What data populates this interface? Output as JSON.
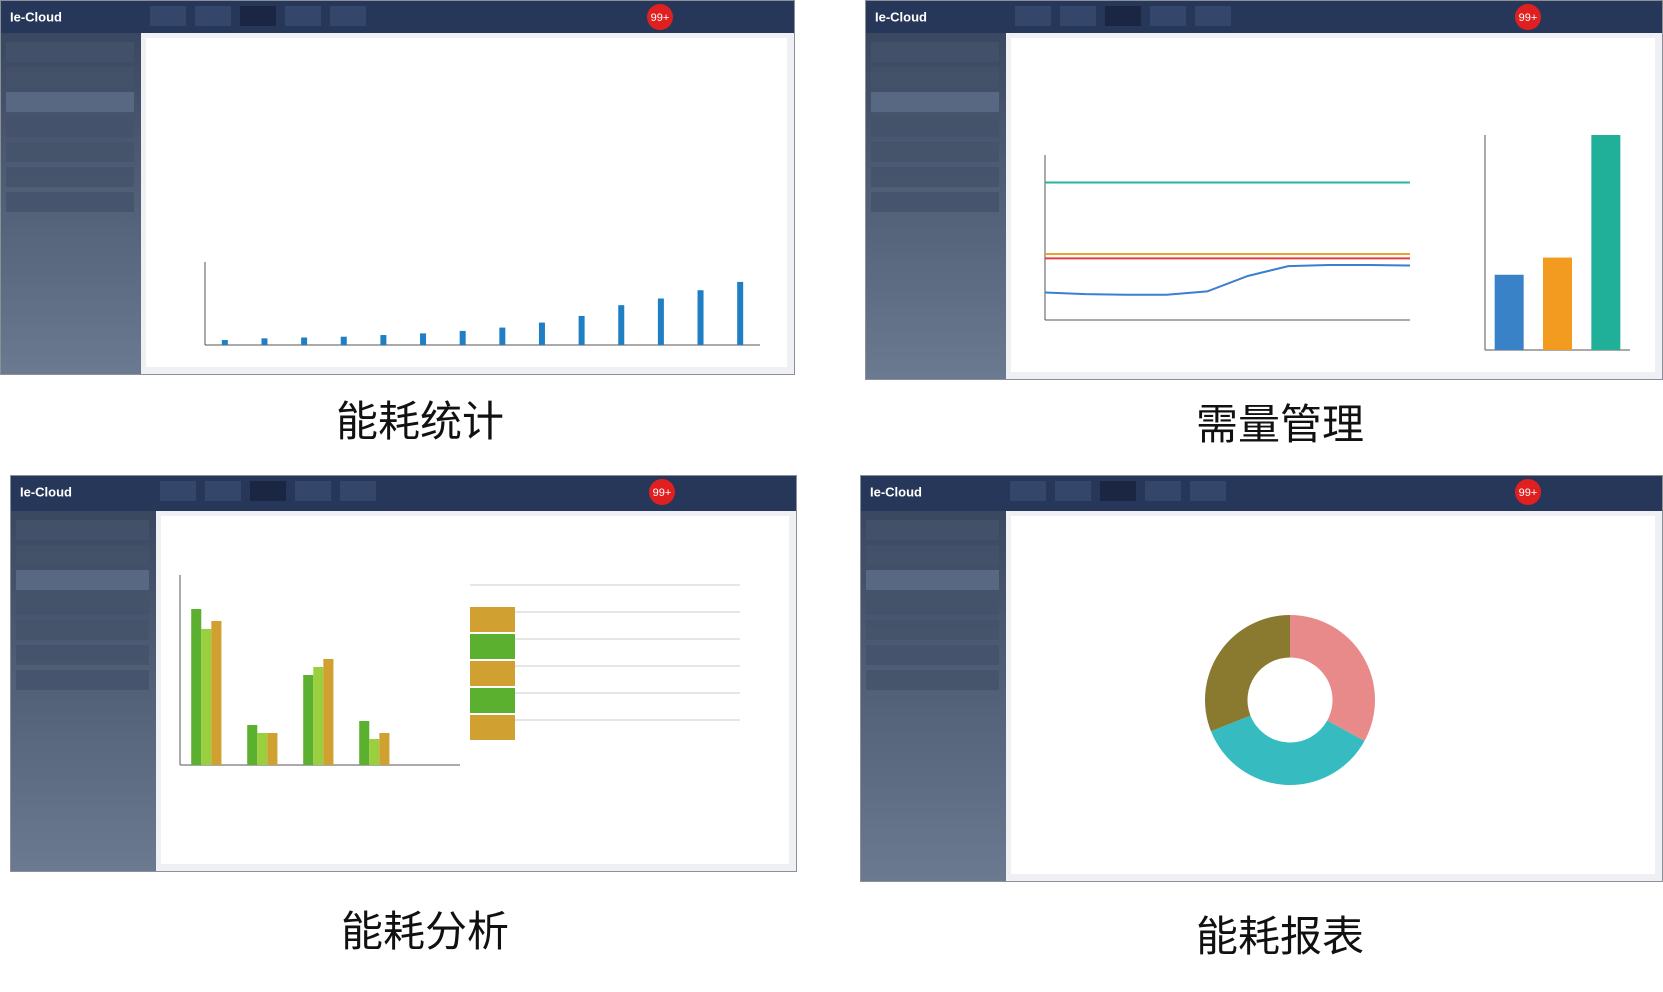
{
  "panels": [
    {
      "caption": "能耗统计",
      "logo": "Ie-Cloud",
      "badge": "99+",
      "charts": [
        {
          "type": "bar",
          "color": "#1f7fc4",
          "ylim": [
            0,
            100
          ],
          "values": [
            6,
            8,
            9,
            10,
            12,
            14,
            17,
            21,
            27,
            35,
            48,
            56,
            66,
            76
          ]
        }
      ]
    },
    {
      "caption": "需量管理",
      "logo": "Ie-Cloud",
      "badge": "99+",
      "charts": [
        {
          "type": "line",
          "ylim": [
            0,
            3000
          ],
          "series": [
            {
              "color": "#26b5a0",
              "values": [
                2500,
                2500,
                2500,
                2500,
                2500,
                2500,
                2500,
                2500,
                2500,
                2500
              ]
            },
            {
              "color": "#f0a030",
              "values": [
                1200,
                1200,
                1200,
                1200,
                1200,
                1200,
                1200,
                1200,
                1200,
                1200
              ]
            },
            {
              "color": "#e04040",
              "values": [
                1120,
                1120,
                1120,
                1120,
                1120,
                1120,
                1120,
                1120,
                1120,
                1120
              ]
            },
            {
              "color": "#3a7fd0",
              "values": [
                500,
                470,
                460,
                460,
                520,
                800,
                980,
                1000,
                1000,
                990
              ]
            }
          ]
        },
        {
          "type": "bar",
          "ylim": [
            0,
            100
          ],
          "values": [
            35,
            43,
            100
          ],
          "colors": [
            "#3a82c8",
            "#f39a20",
            "#20b09a"
          ]
        }
      ]
    },
    {
      "caption": "能耗分析",
      "logo": "Ie-Cloud",
      "badge": "99+",
      "charts": [
        {
          "type": "grouped-bar",
          "ylim": [
            0,
            90
          ],
          "series": [
            {
              "color": "#5bb030",
              "values": [
                78,
                20,
                45,
                22
              ]
            },
            {
              "color": "#9ad040",
              "values": [
                68,
                16,
                49,
                13
              ]
            },
            {
              "color": "#d0a030",
              "values": [
                72,
                16,
                53,
                16
              ]
            }
          ]
        }
      ]
    },
    {
      "caption": "能耗报表",
      "logo": "Ie-Cloud",
      "badge": "99+",
      "charts": [
        {
          "type": "donut",
          "values": [
            33,
            36,
            31
          ],
          "colors": [
            "#e88a8a",
            "#36bcc0",
            "#8a7a30"
          ]
        }
      ]
    }
  ]
}
